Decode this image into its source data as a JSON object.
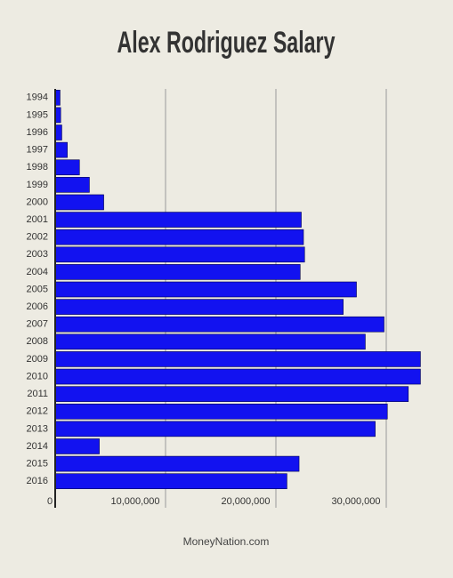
{
  "chart_data": {
    "type": "barh",
    "title": "Alex Rodriguez Salary",
    "source": "MoneyNation.com",
    "categories": [
      "1994",
      "1995",
      "1996",
      "1997",
      "1998",
      "1999",
      "2000",
      "2001",
      "2002",
      "2003",
      "2004",
      "2005",
      "2006",
      "2007",
      "2008",
      "2009",
      "2010",
      "2011",
      "2012",
      "2013",
      "2014",
      "2015",
      "2016"
    ],
    "values": [
      440000,
      500000,
      600000,
      1100000,
      2200000,
      3100000,
      4400000,
      22300000,
      22500000,
      22600000,
      22200000,
      27300000,
      26100000,
      29800000,
      28100000,
      33100000,
      33100000,
      32000000,
      30100000,
      29000000,
      4000000,
      22100000,
      21000000
    ],
    "color": "#1212f0",
    "xlim": [
      0,
      35000000
    ],
    "xticks": [
      0,
      {
        "value": 10000000,
        "label": "10,000,000"
      },
      {
        "value": 20000000,
        "label": "20,000,000"
      },
      {
        "value": 30000000,
        "label": "30,000,000"
      }
    ],
    "grid": true
  }
}
